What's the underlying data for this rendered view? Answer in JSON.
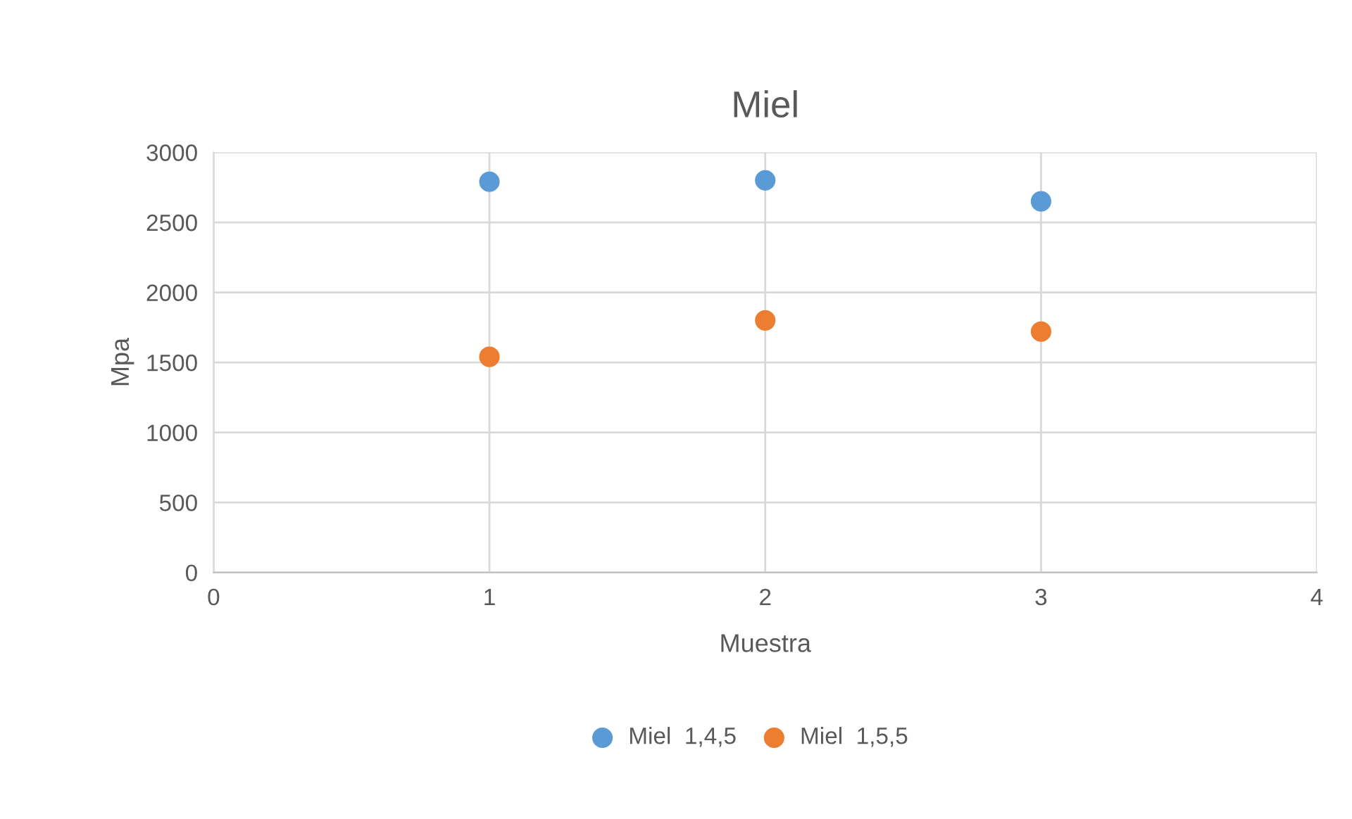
{
  "chart_data": {
    "type": "scatter",
    "title": "Miel",
    "xlabel": "Muestra",
    "ylabel": "Mpa",
    "x": [
      1,
      2,
      3
    ],
    "series": [
      {
        "name": "Miel  1,4,5",
        "color": "#5b9bd5",
        "values": [
          2790,
          2800,
          2650
        ]
      },
      {
        "name": "Miel  1,5,5",
        "color": "#ed7d31",
        "values": [
          1540,
          1800,
          1720
        ]
      }
    ],
    "xlim": [
      0,
      4
    ],
    "xticks": [
      0,
      1,
      2,
      3,
      4
    ],
    "ylim": [
      0,
      3000
    ],
    "yticks": [
      0,
      500,
      1000,
      1500,
      2000,
      2500,
      3000
    ],
    "grid": true,
    "legend": "bottom",
    "marker": "circle"
  }
}
